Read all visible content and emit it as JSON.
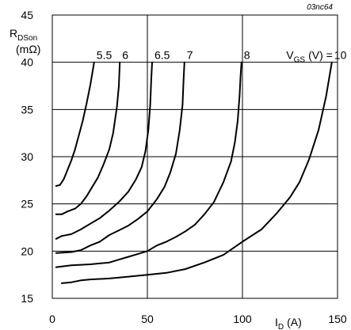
{
  "chart_data": {
    "type": "line",
    "figure_id": "03nc64",
    "ylabel": {
      "main": "R",
      "sub": "DSon",
      "unit": "(mΩ)"
    },
    "xlabel": {
      "main": "I",
      "sub": "D",
      "unit": "(A)"
    },
    "legend_prefix": {
      "main": "V",
      "sub": "GS",
      "rest": "(V) ="
    },
    "xlim": [
      0,
      150
    ],
    "ylim": [
      15,
      45
    ],
    "xticks": [
      0,
      50,
      100,
      150
    ],
    "yticks": [
      15,
      20,
      25,
      30,
      35,
      40,
      45
    ],
    "grid": true,
    "colors": {
      "line": "#000000",
      "grid": "#000000",
      "background": "#ffffff"
    },
    "series": [
      {
        "name": "5.5",
        "points": [
          [
            2,
            26.9
          ],
          [
            4,
            27.0
          ],
          [
            6,
            27.6
          ],
          [
            8,
            28.6
          ],
          [
            10,
            29.6
          ],
          [
            12,
            30.8
          ],
          [
            14,
            32.3
          ],
          [
            16,
            33.8
          ],
          [
            18,
            35.6
          ],
          [
            20,
            37.6
          ],
          [
            22,
            40.0
          ]
        ]
      },
      {
        "name": "6",
        "points": [
          [
            2,
            23.9
          ],
          [
            5,
            23.9
          ],
          [
            8,
            24.2
          ],
          [
            12,
            24.5
          ],
          [
            15,
            25.0
          ],
          [
            18,
            25.8
          ],
          [
            21,
            26.8
          ],
          [
            24,
            27.8
          ],
          [
            27,
            29.2
          ],
          [
            30,
            30.8
          ],
          [
            32,
            32.5
          ],
          [
            34,
            35.3
          ],
          [
            35,
            37.5
          ],
          [
            35.5,
            40.0
          ]
        ]
      },
      {
        "name": "6.5",
        "points": [
          [
            2,
            21.3
          ],
          [
            5,
            21.6
          ],
          [
            10,
            21.8
          ],
          [
            15,
            22.3
          ],
          [
            20,
            22.9
          ],
          [
            25,
            23.5
          ],
          [
            30,
            24.3
          ],
          [
            35,
            25.2
          ],
          [
            40,
            26.3
          ],
          [
            44,
            27.6
          ],
          [
            47,
            28.9
          ],
          [
            49,
            30.6
          ],
          [
            50.5,
            32.8
          ],
          [
            51.5,
            35.5
          ],
          [
            52,
            38.0
          ],
          [
            52.5,
            40.0
          ]
        ]
      },
      {
        "name": "7",
        "points": [
          [
            2,
            19.8
          ],
          [
            10,
            19.9
          ],
          [
            15,
            20.1
          ],
          [
            20,
            20.6
          ],
          [
            25,
            21.0
          ],
          [
            30,
            21.7
          ],
          [
            35,
            22.2
          ],
          [
            40,
            22.7
          ],
          [
            45,
            23.4
          ],
          [
            50,
            24.2
          ],
          [
            55,
            25.5
          ],
          [
            59,
            26.8
          ],
          [
            62,
            28.3
          ],
          [
            65,
            30.3
          ],
          [
            67,
            32.8
          ],
          [
            68.5,
            35.5
          ],
          [
            69,
            38.0
          ],
          [
            69.5,
            40.0
          ]
        ]
      },
      {
        "name": "8",
        "points": [
          [
            2,
            18.3
          ],
          [
            10,
            18.5
          ],
          [
            20,
            18.6
          ],
          [
            30,
            18.8
          ],
          [
            35,
            19.1
          ],
          [
            40,
            19.4
          ],
          [
            45,
            19.7
          ],
          [
            50,
            20.0
          ],
          [
            55,
            20.6
          ],
          [
            60,
            21.0
          ],
          [
            65,
            21.5
          ],
          [
            70,
            22.1
          ],
          [
            75,
            22.8
          ],
          [
            80,
            23.9
          ],
          [
            85,
            25.2
          ],
          [
            90,
            27.3
          ],
          [
            94,
            29.5
          ],
          [
            96,
            31.5
          ],
          [
            97.5,
            33.8
          ],
          [
            98.5,
            36.5
          ],
          [
            99,
            38.5
          ],
          [
            99.5,
            40.0
          ]
        ]
      },
      {
        "name": "10",
        "points": [
          [
            5,
            16.6
          ],
          [
            10,
            16.7
          ],
          [
            15,
            16.9
          ],
          [
            20,
            17.0
          ],
          [
            30,
            17.1
          ],
          [
            40,
            17.3
          ],
          [
            50,
            17.5
          ],
          [
            60,
            17.7
          ],
          [
            70,
            18.1
          ],
          [
            80,
            18.8
          ],
          [
            90,
            19.6
          ],
          [
            100,
            21.0
          ],
          [
            110,
            22.3
          ],
          [
            118,
            24.0
          ],
          [
            125,
            25.7
          ],
          [
            130,
            27.3
          ],
          [
            135,
            29.7
          ],
          [
            140,
            32.8
          ],
          [
            144,
            36.4
          ],
          [
            147,
            40.0
          ]
        ]
      }
    ]
  }
}
